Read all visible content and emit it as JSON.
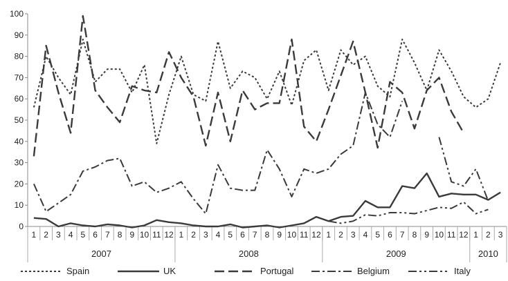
{
  "chart_data": {
    "type": "line",
    "title": "",
    "xlabel": "",
    "ylabel": "",
    "ylim": [
      0,
      100
    ],
    "yticks": [
      0,
      10,
      20,
      30,
      40,
      50,
      60,
      70,
      80,
      90,
      100
    ],
    "grid": false,
    "legend_position": "bottom",
    "x": [
      "2007-01",
      "2007-02",
      "2007-03",
      "2007-04",
      "2007-05",
      "2007-06",
      "2007-07",
      "2007-08",
      "2007-09",
      "2007-10",
      "2007-11",
      "2007-12",
      "2008-01",
      "2008-02",
      "2008-03",
      "2008-04",
      "2008-05",
      "2008-06",
      "2008-07",
      "2008-08",
      "2008-09",
      "2008-10",
      "2008-11",
      "2008-12",
      "2009-01",
      "2009-02",
      "2009-03",
      "2009-04",
      "2009-05",
      "2009-06",
      "2009-07",
      "2009-08",
      "2009-09",
      "2009-10",
      "2009-11",
      "2009-12",
      "2010-01",
      "2010-02",
      "2010-03"
    ],
    "month_labels": [
      "1",
      "2",
      "3",
      "4",
      "5",
      "6",
      "7",
      "8",
      "9",
      "10",
      "11",
      "12",
      "1",
      "2",
      "3",
      "4",
      "5",
      "6",
      "7",
      "8",
      "9",
      "10",
      "11",
      "12",
      "1",
      "2",
      "3",
      "4",
      "5",
      "6",
      "7",
      "8",
      "9",
      "10",
      "11",
      "12",
      "1",
      "2",
      "3"
    ],
    "year_groups": [
      {
        "label": "2007",
        "months": 12
      },
      {
        "label": "2008",
        "months": 12
      },
      {
        "label": "2009",
        "months": 12
      },
      {
        "label": "2010",
        "months": 3
      }
    ],
    "series": [
      {
        "name": "Spain",
        "dash": "3,3",
        "width": 2,
        "values": [
          56,
          80,
          70,
          62,
          88,
          68,
          74,
          74,
          63,
          76,
          39,
          62,
          80,
          62,
          59,
          87,
          65,
          73,
          70,
          60,
          73,
          57,
          78,
          83,
          64,
          83,
          76,
          80,
          66,
          61,
          88,
          77,
          64,
          83,
          73,
          61,
          56,
          60,
          77
        ]
      },
      {
        "name": "UK",
        "dash": "",
        "width": 2.4,
        "values": [
          4,
          3.5,
          0,
          1.5,
          0.5,
          0,
          1,
          0.5,
          -0.5,
          0.5,
          3,
          2,
          1.5,
          0.5,
          0,
          0,
          1,
          -0.5,
          0,
          0.5,
          -0.5,
          0.5,
          1.5,
          4.5,
          2.5,
          4.5,
          5,
          12,
          9,
          9,
          19,
          18,
          25,
          14,
          15.5,
          15,
          15,
          12.5,
          16
        ]
      },
      {
        "name": "Portugal",
        "dash": "14,6",
        "width": 2.4,
        "values": [
          33,
          85,
          63,
          44,
          99,
          64,
          56,
          49,
          66,
          64,
          63,
          82,
          70,
          61,
          38,
          63,
          40,
          64,
          55,
          58,
          58,
          88,
          47,
          40,
          55,
          71,
          87,
          63,
          37,
          68,
          63,
          46,
          64,
          70,
          54,
          44,
          null,
          null,
          null
        ]
      },
      {
        "name": "Belgium",
        "dash": "12,4,3,4",
        "width": 2,
        "values": [
          20,
          7,
          11,
          15,
          26,
          28,
          31,
          32,
          19,
          21,
          16,
          18,
          21,
          13,
          6,
          29,
          18,
          17,
          17,
          36,
          27,
          14,
          27,
          25,
          27,
          34,
          38,
          63,
          48,
          42,
          59,
          null,
          null,
          null,
          null,
          null,
          null,
          null,
          null
        ]
      },
      {
        "name": "Italy",
        "dash": "12,4,3,4,3,4",
        "width": 2,
        "values": [
          null,
          null,
          null,
          null,
          null,
          null,
          null,
          null,
          null,
          null,
          null,
          null,
          null,
          null,
          null,
          null,
          null,
          null,
          null,
          null,
          null,
          null,
          null,
          null,
          2.5,
          1.5,
          2.5,
          5.5,
          5,
          6.5,
          6.5,
          6,
          7.5,
          9,
          8.5,
          11.5,
          6,
          8,
          null
        ]
      }
    ],
    "extra_segments": [
      {
        "series": "Italy",
        "points": [
          [
            33,
            42
          ],
          [
            34,
            21
          ],
          [
            35,
            19
          ],
          [
            36,
            27
          ],
          [
            37,
            12
          ]
        ]
      }
    ]
  }
}
